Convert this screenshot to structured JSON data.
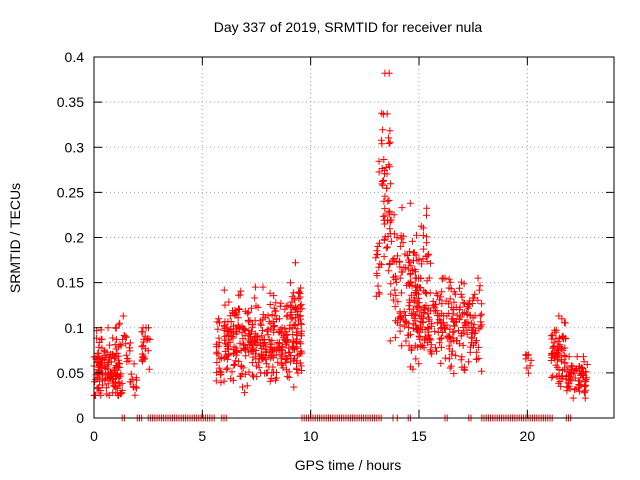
{
  "chart_data": {
    "type": "scatter",
    "title": "Day 337 of 2019, SRMTID for receiver nula",
    "xlabel": "GPS time / hours",
    "ylabel": "SRMTID / TECUs",
    "xlim": [
      0,
      24
    ],
    "ylim": [
      0,
      0.4
    ],
    "xticks": [
      0,
      5,
      10,
      15,
      20
    ],
    "yticks": [
      0,
      0.05,
      0.1,
      0.15,
      0.2,
      0.25,
      0.3,
      0.35,
      0.4
    ],
    "xtick_labels": [
      "0",
      "5",
      "10",
      "15",
      "20"
    ],
    "ytick_labels": [
      "0",
      "0.05",
      "0.1",
      "0.15",
      "0.2",
      "0.25",
      "0.3",
      "0.35",
      "0.4"
    ],
    "grid": true,
    "marker": "+",
    "color": "#ff0000",
    "clusters": [
      {
        "x_range": [
          0.0,
          1.3
        ],
        "y_center": 0.055,
        "y_spread": 0.02,
        "count": 150,
        "y_min": 0.025,
        "y_max": 0.1
      },
      {
        "x_range": [
          1.0,
          1.7
        ],
        "y_center": 0.075,
        "y_spread": 0.015,
        "count": 20,
        "y_min": 0.04,
        "y_max": 0.113
      },
      {
        "x_range": [
          1.7,
          2.0
        ],
        "y_center": 0.045,
        "y_spread": 0.01,
        "count": 10,
        "y_min": 0.025,
        "y_max": 0.06
      },
      {
        "x_range": [
          2.2,
          2.6
        ],
        "y_center": 0.075,
        "y_spread": 0.015,
        "count": 22,
        "y_min": 0.035,
        "y_max": 0.1
      },
      {
        "x_range": [
          5.6,
          5.9
        ],
        "y_center": 0.07,
        "y_spread": 0.025,
        "count": 22,
        "y_min": 0.03,
        "y_max": 0.11
      },
      {
        "x_range": [
          6.0,
          9.6
        ],
        "y_center": 0.085,
        "y_spread": 0.022,
        "count": 360,
        "y_min": 0.025,
        "y_max": 0.145
      },
      {
        "x_range": [
          9.0,
          9.6
        ],
        "y_center": 0.12,
        "y_spread": 0.02,
        "count": 30,
        "y_min": 0.08,
        "y_max": 0.172
      },
      {
        "x_range": [
          13.0,
          13.2
        ],
        "y_center": 0.16,
        "y_spread": 0.02,
        "count": 12,
        "y_min": 0.135,
        "y_max": 0.19
      },
      {
        "x_range": [
          13.15,
          13.7
        ],
        "y_center": 0.26,
        "y_spread": 0.055,
        "count": 55,
        "y_min": 0.17,
        "y_max": 0.382
      },
      {
        "x_range": [
          13.6,
          15.6
        ],
        "y_center": 0.15,
        "y_spread": 0.035,
        "count": 150,
        "y_min": 0.08,
        "y_max": 0.238
      },
      {
        "x_range": [
          14.5,
          17.9
        ],
        "y_center": 0.1,
        "y_spread": 0.025,
        "count": 240,
        "y_min": 0.04,
        "y_max": 0.155
      },
      {
        "x_range": [
          19.9,
          20.2
        ],
        "y_center": 0.058,
        "y_spread": 0.01,
        "count": 8,
        "y_min": 0.045,
        "y_max": 0.07
      },
      {
        "x_range": [
          21.1,
          21.8
        ],
        "y_center": 0.07,
        "y_spread": 0.018,
        "count": 70,
        "y_min": 0.03,
        "y_max": 0.113
      },
      {
        "x_range": [
          21.8,
          22.8
        ],
        "y_center": 0.045,
        "y_spread": 0.012,
        "count": 70,
        "y_min": 0.022,
        "y_max": 0.068
      }
    ],
    "zero_segments": [
      [
        1.3,
        1.5
      ],
      [
        2.0,
        2.3
      ],
      [
        2.5,
        5.6
      ],
      [
        5.9,
        6.2
      ],
      [
        9.6,
        13.3
      ],
      [
        13.8,
        13.9
      ],
      [
        14.0,
        14.1
      ],
      [
        14.5,
        14.7
      ],
      [
        16.2,
        16.4
      ],
      [
        17.3,
        17.5
      ],
      [
        17.9,
        21.2
      ],
      [
        21.8,
        22.1
      ]
    ]
  }
}
